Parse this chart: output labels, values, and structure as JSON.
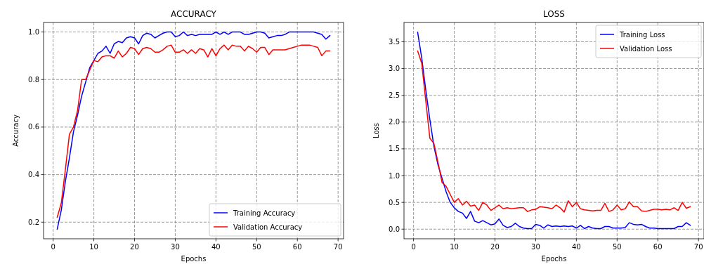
{
  "chart_data": [
    {
      "type": "line",
      "title": "ACCURACY",
      "xlabel": "Epochs",
      "ylabel": "Accuracy",
      "x": [
        1,
        2,
        3,
        4,
        5,
        6,
        7,
        8,
        9,
        10,
        11,
        12,
        13,
        14,
        15,
        16,
        17,
        18,
        19,
        20,
        21,
        22,
        23,
        24,
        25,
        26,
        27,
        28,
        29,
        30,
        31,
        32,
        33,
        34,
        35,
        36,
        37,
        38,
        39,
        40,
        41,
        42,
        43,
        44,
        45,
        46,
        47,
        48,
        49,
        50,
        51,
        52,
        53,
        54,
        55,
        56,
        57,
        58,
        59,
        60,
        61,
        62,
        63,
        64,
        65,
        66,
        67,
        68
      ],
      "xlim": [
        -2.35,
        71.35
      ],
      "xticks": [
        0,
        10,
        20,
        30,
        40,
        50,
        60,
        70
      ],
      "ylim": [
        0.13,
        1.04
      ],
      "yticks": [
        0.2,
        0.4,
        0.6,
        0.8,
        {
          "value": 1,
          "label": "1.0"
        }
      ],
      "grid": true,
      "legend": "bottom right",
      "line_style": "solid",
      "series": [
        {
          "name": "Training Accuracy",
          "color": "#0000ff",
          "values": [
            0.17,
            0.25,
            0.37,
            0.47,
            0.58,
            0.65,
            0.73,
            0.79,
            0.85,
            0.88,
            0.91,
            0.92,
            0.94,
            0.91,
            0.95,
            0.96,
            0.955,
            0.975,
            0.98,
            0.975,
            0.95,
            0.985,
            0.995,
            0.99,
            0.975,
            0.985,
            0.995,
            1.0,
            1.0,
            0.98,
            0.985,
            1.0,
            0.985,
            0.99,
            0.985,
            0.99,
            0.99,
            0.99,
            0.99,
            1.0,
            0.99,
            1.0,
            0.99,
            1.0,
            1.0,
            1.0,
            0.99,
            0.99,
            0.995,
            1.0,
            1.0,
            0.995,
            0.975,
            0.98,
            0.985,
            0.985,
            0.99,
            1.0,
            1.0,
            1.0,
            1.0,
            1.0,
            1.0,
            1.0,
            0.995,
            0.99,
            0.97,
            0.985
          ]
        },
        {
          "name": "Validation Accuracy",
          "color": "#ff0000",
          "values": [
            0.22,
            0.28,
            0.42,
            0.57,
            0.6,
            0.67,
            0.8,
            0.8,
            0.84,
            0.88,
            0.875,
            0.895,
            0.9,
            0.9,
            0.89,
            0.92,
            0.895,
            0.91,
            0.935,
            0.93,
            0.905,
            0.93,
            0.935,
            0.93,
            0.915,
            0.915,
            0.925,
            0.94,
            0.945,
            0.915,
            0.915,
            0.925,
            0.91,
            0.925,
            0.91,
            0.93,
            0.925,
            0.895,
            0.93,
            0.9,
            0.93,
            0.945,
            0.925,
            0.945,
            0.94,
            0.94,
            0.92,
            0.94,
            0.93,
            0.915,
            0.935,
            0.935,
            0.905,
            0.925,
            0.925,
            0.925,
            0.925,
            0.93,
            0.935,
            0.94,
            0.945,
            0.945,
            0.945,
            0.94,
            0.935,
            0.9,
            0.92,
            0.92
          ]
        }
      ]
    },
    {
      "type": "line",
      "title": "LOSS",
      "xlabel": "Epochs",
      "ylabel": "Loss",
      "x": [
        1,
        2,
        3,
        4,
        5,
        6,
        7,
        8,
        9,
        10,
        11,
        12,
        13,
        14,
        15,
        16,
        17,
        18,
        19,
        20,
        21,
        22,
        23,
        24,
        25,
        26,
        27,
        28,
        29,
        30,
        31,
        32,
        33,
        34,
        35,
        36,
        37,
        38,
        39,
        40,
        41,
        42,
        43,
        44,
        45,
        46,
        47,
        48,
        49,
        50,
        51,
        52,
        53,
        54,
        55,
        56,
        57,
        58,
        59,
        60,
        61,
        62,
        63,
        64,
        65,
        66,
        67,
        68
      ],
      "xlim": [
        -2.35,
        71.35
      ],
      "xticks": [
        0,
        10,
        20,
        30,
        40,
        50,
        60,
        70
      ],
      "ylim": [
        -0.18,
        3.86
      ],
      "yticks": [
        {
          "value": 0,
          "label": "0.0"
        },
        0.5,
        {
          "value": 1,
          "label": "1.0"
        },
        1.5,
        {
          "value": 2,
          "label": "2.0"
        },
        2.5,
        {
          "value": 3,
          "label": "3.0"
        },
        3.5
      ],
      "grid": true,
      "legend": "top right",
      "line_style": "solid",
      "series": [
        {
          "name": "Training Loss",
          "color": "#0000ff",
          "values": [
            3.68,
            3.2,
            2.6,
            2.05,
            1.55,
            1.2,
            0.95,
            0.7,
            0.5,
            0.4,
            0.33,
            0.3,
            0.2,
            0.33,
            0.15,
            0.12,
            0.16,
            0.12,
            0.08,
            0.1,
            0.19,
            0.07,
            0.03,
            0.05,
            0.11,
            0.05,
            0.02,
            0.01,
            0.01,
            0.09,
            0.07,
            0.02,
            0.08,
            0.05,
            0.06,
            0.05,
            0.06,
            0.05,
            0.06,
            0.02,
            0.07,
            0.01,
            0.05,
            0.02,
            0.01,
            0.01,
            0.05,
            0.05,
            0.02,
            0.02,
            0.02,
            0.03,
            0.12,
            0.09,
            0.08,
            0.09,
            0.05,
            0.02,
            0.02,
            0.01,
            0.01,
            0.01,
            0.01,
            0.01,
            0.05,
            0.05,
            0.12,
            0.07
          ]
        },
        {
          "name": "Validation Loss",
          "color": "#ff0000",
          "values": [
            3.33,
            3.1,
            2.4,
            1.7,
            1.6,
            1.25,
            0.87,
            0.8,
            0.65,
            0.5,
            0.57,
            0.45,
            0.52,
            0.43,
            0.45,
            0.35,
            0.5,
            0.45,
            0.35,
            0.4,
            0.45,
            0.38,
            0.4,
            0.38,
            0.39,
            0.4,
            0.4,
            0.33,
            0.36,
            0.37,
            0.42,
            0.41,
            0.4,
            0.38,
            0.45,
            0.4,
            0.32,
            0.53,
            0.42,
            0.5,
            0.38,
            0.36,
            0.35,
            0.34,
            0.35,
            0.35,
            0.48,
            0.33,
            0.36,
            0.45,
            0.36,
            0.38,
            0.51,
            0.42,
            0.42,
            0.34,
            0.33,
            0.35,
            0.37,
            0.37,
            0.36,
            0.37,
            0.36,
            0.4,
            0.35,
            0.5,
            0.39,
            0.42
          ]
        }
      ]
    }
  ]
}
